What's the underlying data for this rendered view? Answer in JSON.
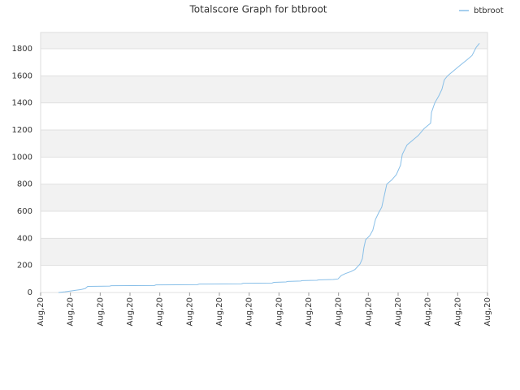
{
  "chart_data": {
    "type": "line",
    "title": "Totalscore Graph for btbroot",
    "series": [
      {
        "name": "btbroot",
        "color": "#88bfe8",
        "x": [
          0.6,
          0.82,
          1.04,
          1.23,
          1.36,
          1.5,
          1.58,
          2.32,
          2.37,
          3.82,
          3.87,
          5.26,
          5.32,
          6.74,
          6.8,
          7.77,
          7.83,
          8.24,
          8.29,
          8.73,
          8.78,
          9.27,
          9.33,
          9.82,
          9.98,
          10.09,
          10.23,
          10.42,
          10.55,
          10.72,
          10.8,
          10.85,
          10.91,
          11.05,
          11.15,
          11.24,
          11.35,
          11.45,
          11.54,
          11.62,
          11.78,
          11.94,
          12.08,
          12.14,
          12.3,
          12.41,
          12.68,
          12.87,
          13.09,
          13.12,
          13.23,
          13.36,
          13.47,
          13.55,
          13.66,
          14.04,
          14.32,
          14.48,
          14.62,
          14.73
        ],
        "values": [
          0,
          5,
          12,
          18,
          22,
          30,
          45,
          47,
          50,
          52,
          56,
          58,
          62,
          64,
          68,
          70,
          75,
          78,
          82,
          85,
          88,
          90,
          93,
          96,
          100,
          125,
          140,
          155,
          170,
          210,
          250,
          330,
          390,
          420,
          460,
          540,
          590,
          630,
          720,
          800,
          830,
          870,
          940,
          1020,
          1090,
          1110,
          1160,
          1210,
          1250,
          1330,
          1400,
          1450,
          1500,
          1570,
          1600,
          1670,
          1720,
          1750,
          1810,
          1840
        ]
      }
    ],
    "xlim": [
      0,
      15
    ],
    "xticks": [
      {
        "value": 0,
        "label": "Aug,20"
      },
      {
        "value": 1,
        "label": "Aug,20"
      },
      {
        "value": 2,
        "label": "Aug,20"
      },
      {
        "value": 3,
        "label": "Aug,20"
      },
      {
        "value": 4,
        "label": "Aug,20"
      },
      {
        "value": 5,
        "label": "Aug,20"
      },
      {
        "value": 6,
        "label": "Aug,20"
      },
      {
        "value": 7,
        "label": "Aug,20"
      },
      {
        "value": 8,
        "label": "Aug,20"
      },
      {
        "value": 9,
        "label": "Aug,20"
      },
      {
        "value": 10,
        "label": "Aug,20"
      },
      {
        "value": 11,
        "label": "Aug,20"
      },
      {
        "value": 12,
        "label": "Aug,20"
      },
      {
        "value": 13,
        "label": "Aug,20"
      },
      {
        "value": 14,
        "label": "Aug,20"
      },
      {
        "value": 15,
        "label": "Aug,20"
      }
    ],
    "ylim": [
      0,
      1920
    ],
    "yticks": [
      0,
      200,
      400,
      600,
      800,
      1000,
      1200,
      1400,
      1600,
      1800
    ],
    "grid": true,
    "legend": "top-right"
  }
}
